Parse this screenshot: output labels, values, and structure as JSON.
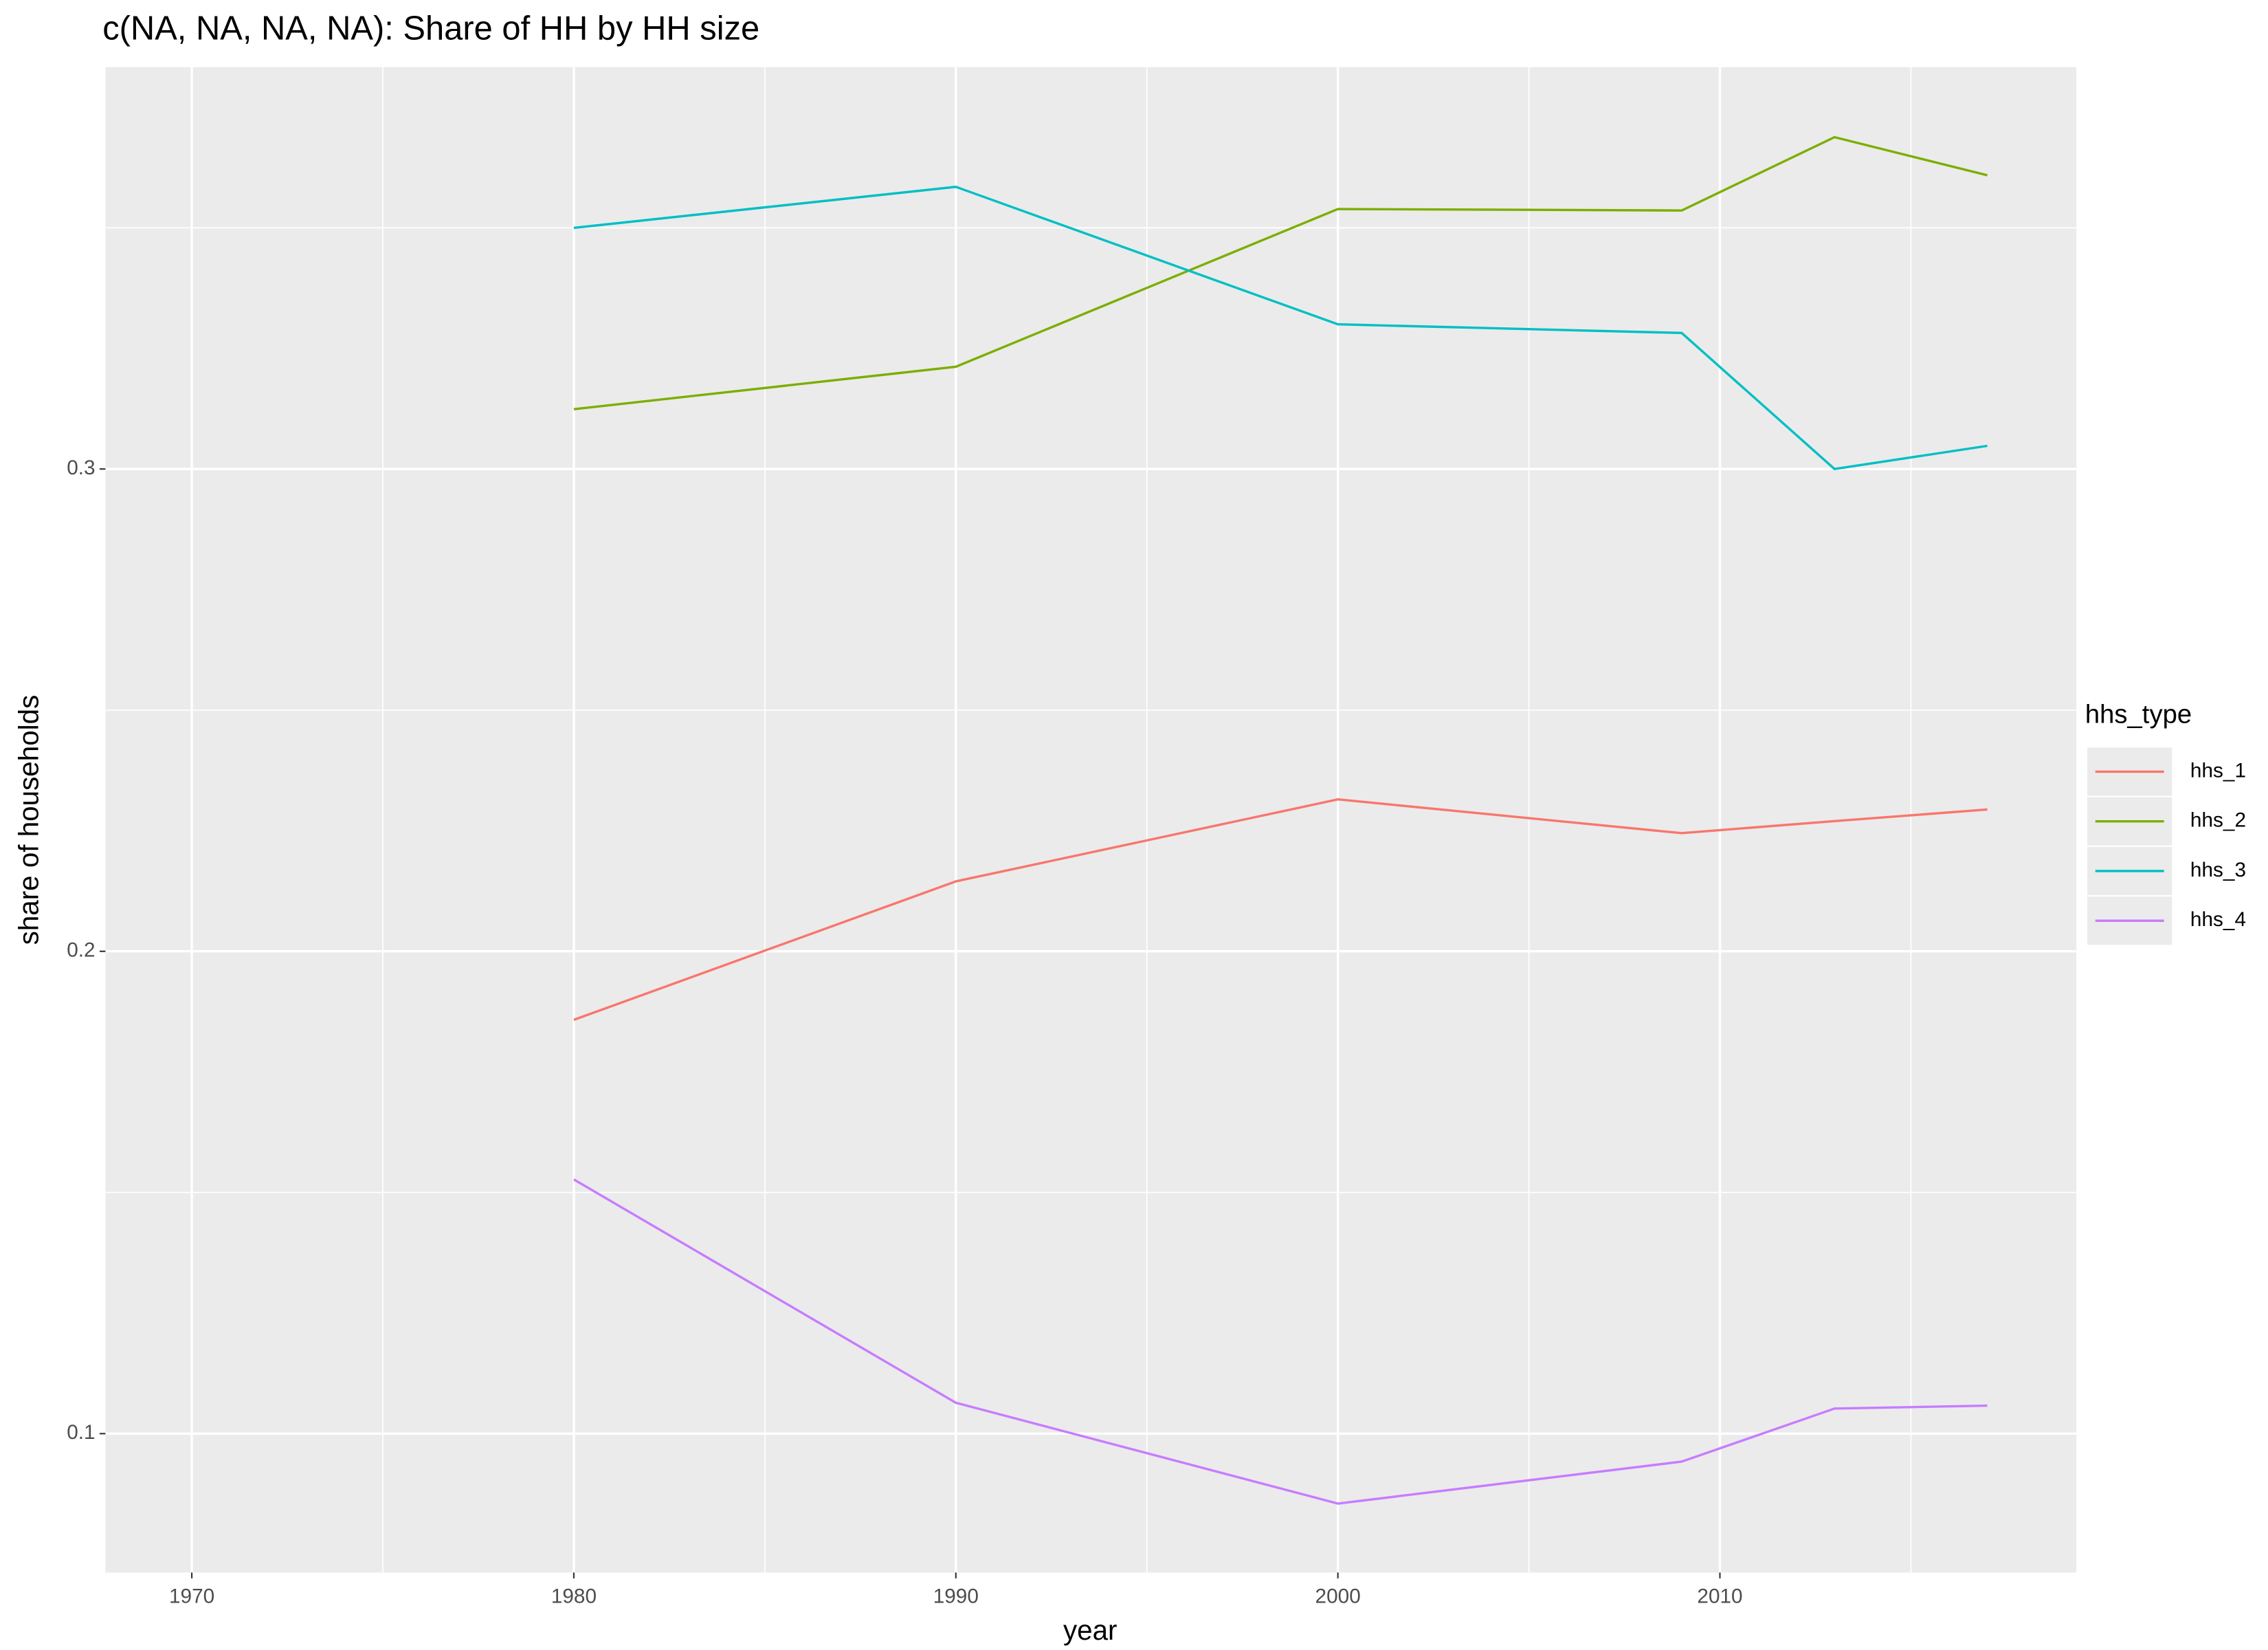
{
  "chart_data": {
    "type": "line",
    "title": "c(NA, NA, NA, NA): Share of HH by HH size",
    "x_label": "year",
    "y_label": "share of households",
    "legend_title": "hhs_type",
    "legend_position": "right",
    "x": [
      1980,
      1990,
      2000,
      2009,
      2013,
      2017
    ],
    "series": [
      {
        "name": "hhs_1",
        "color": "#F8766D",
        "values": [
          0.1858,
          0.2145,
          0.2315,
          0.2245,
          0.227,
          0.2294
        ]
      },
      {
        "name": "hhs_2",
        "color": "#7CAE00",
        "values": [
          0.3124,
          0.3212,
          0.3539,
          0.3536,
          0.3688,
          0.3609
        ]
      },
      {
        "name": "hhs_3",
        "color": "#00BFC4",
        "values": [
          0.35,
          0.3585,
          0.33,
          0.3282,
          0.3,
          0.3048
        ]
      },
      {
        "name": "hhs_4",
        "color": "#C77CFF",
        "values": [
          0.1527,
          0.1064,
          0.0855,
          0.0942,
          0.1052,
          0.1058
        ]
      }
    ],
    "xlim": [
      1967.74,
      2019.33
    ],
    "xticks": [
      1970,
      1980,
      1990,
      2000,
      2010
    ],
    "x_minor_breaks": [
      1975,
      1985,
      1995,
      2005,
      2015
    ],
    "ylim": [
      0.0712,
      0.3833
    ],
    "yticks": [
      0.1,
      0.2,
      0.3
    ],
    "y_minor_breaks": [
      0.15,
      0.25,
      0.35
    ],
    "grid": true,
    "panel_color": "#EBEBEB"
  }
}
